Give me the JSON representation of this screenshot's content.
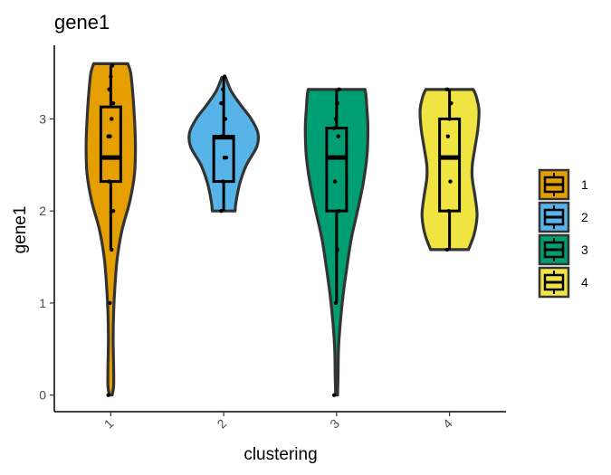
{
  "chart_data": {
    "type": "violin",
    "title": "gene1",
    "xlabel": "clustering",
    "ylabel": "gene1",
    "ylim": [
      -0.18,
      3.8
    ],
    "yticks": [
      0,
      1,
      2,
      3
    ],
    "categories": [
      "1",
      "2",
      "3",
      "4"
    ],
    "colors": [
      "#E69F00",
      "#56B4E9",
      "#009E73",
      "#F0E442"
    ],
    "legend": {
      "position": "right",
      "labels": [
        "1",
        "2",
        "3",
        "4"
      ]
    },
    "grid": false,
    "groups": [
      {
        "name": "1",
        "violin_profile": [
          [
            0.0,
            0.03
          ],
          [
            0.1,
            0.06
          ],
          [
            0.3,
            0.06
          ],
          [
            0.6,
            0.05
          ],
          [
            0.9,
            0.06
          ],
          [
            1.2,
            0.09
          ],
          [
            1.5,
            0.14
          ],
          [
            1.8,
            0.24
          ],
          [
            2.1,
            0.4
          ],
          [
            2.4,
            0.5
          ],
          [
            2.7,
            0.52
          ],
          [
            3.0,
            0.5
          ],
          [
            3.3,
            0.46
          ],
          [
            3.5,
            0.42
          ],
          [
            3.6,
            0.36
          ]
        ],
        "box": {
          "min": 1.58,
          "q1": 2.32,
          "median": 2.58,
          "q3": 3.13,
          "max": 3.58
        },
        "points": [
          0.0,
          1.0,
          1.58,
          2.0,
          2.32,
          2.58,
          2.58,
          2.81,
          2.81,
          3.0,
          3.17,
          3.32,
          3.46,
          3.58
        ]
      },
      {
        "name": "2",
        "violin_profile": [
          [
            2.0,
            0.24
          ],
          [
            2.1,
            0.26
          ],
          [
            2.3,
            0.34
          ],
          [
            2.5,
            0.48
          ],
          [
            2.7,
            0.7
          ],
          [
            2.85,
            0.72
          ],
          [
            3.0,
            0.58
          ],
          [
            3.15,
            0.36
          ],
          [
            3.3,
            0.16
          ],
          [
            3.45,
            0.04
          ]
        ],
        "box": {
          "min": 2.0,
          "q1": 2.32,
          "median": 2.8,
          "q3": 2.81,
          "max": 3.46
        },
        "points": [
          2.0,
          2.32,
          2.58,
          2.58,
          2.81,
          2.81,
          3.0,
          3.17,
          3.32,
          3.46
        ]
      },
      {
        "name": "3",
        "violin_profile": [
          [
            0.0,
            0.02
          ],
          [
            0.2,
            0.03
          ],
          [
            0.5,
            0.04
          ],
          [
            0.8,
            0.08
          ],
          [
            1.1,
            0.14
          ],
          [
            1.4,
            0.22
          ],
          [
            1.7,
            0.31
          ],
          [
            2.0,
            0.44
          ],
          [
            2.3,
            0.56
          ],
          [
            2.6,
            0.64
          ],
          [
            2.9,
            0.66
          ],
          [
            3.1,
            0.64
          ],
          [
            3.25,
            0.62
          ],
          [
            3.32,
            0.6
          ]
        ],
        "box": {
          "min": 1.0,
          "q1": 2.0,
          "median": 2.58,
          "q3": 2.9,
          "max": 3.32
        },
        "points": [
          0.0,
          1.0,
          1.58,
          2.0,
          2.32,
          2.58,
          2.81,
          2.9,
          3.0,
          3.17,
          3.32
        ]
      },
      {
        "name": "4",
        "violin_profile": [
          [
            1.58,
            0.4
          ],
          [
            1.75,
            0.52
          ],
          [
            1.95,
            0.58
          ],
          [
            2.15,
            0.54
          ],
          [
            2.35,
            0.48
          ],
          [
            2.5,
            0.48
          ],
          [
            2.7,
            0.54
          ],
          [
            2.9,
            0.6
          ],
          [
            3.1,
            0.62
          ],
          [
            3.25,
            0.56
          ],
          [
            3.32,
            0.5
          ]
        ],
        "box": {
          "min": 1.58,
          "q1": 2.0,
          "median": 2.58,
          "q3": 3.0,
          "max": 3.32
        },
        "points": [
          1.58,
          2.0,
          2.32,
          2.58,
          2.81,
          3.0,
          3.17,
          3.32
        ]
      }
    ]
  }
}
